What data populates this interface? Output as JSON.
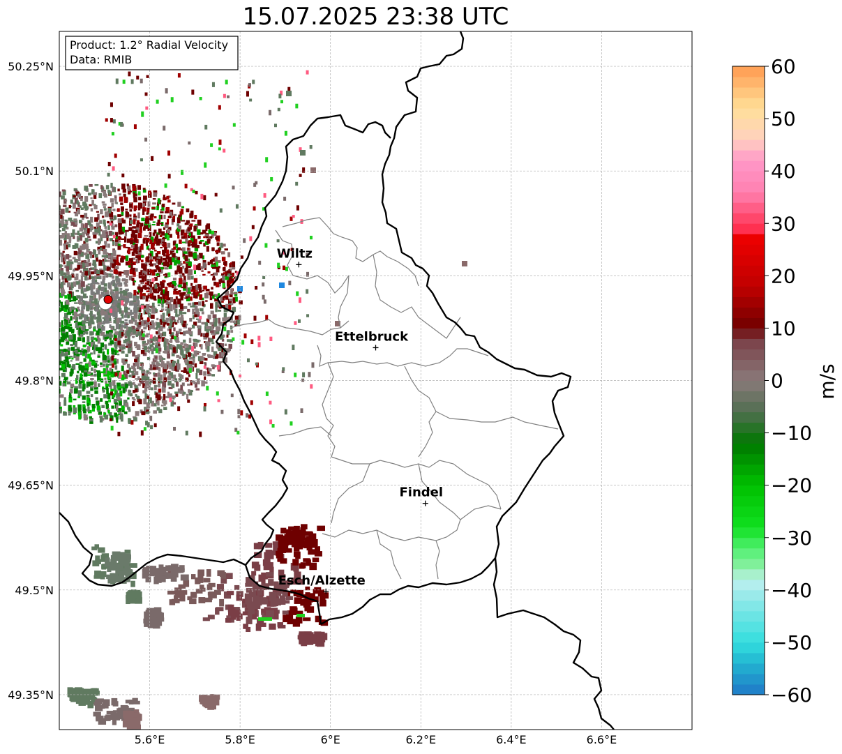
{
  "title": "15.07.2025 23:38 UTC",
  "info": {
    "line1": "Product: 1.2° Radial Velocity",
    "line2": "Data: RMIB"
  },
  "lat_ticks": [
    {
      "value": 50.25,
      "label": "50.25°N"
    },
    {
      "value": 50.1,
      "label": "50.1°N"
    },
    {
      "value": 49.95,
      "label": "49.95°N"
    },
    {
      "value": 49.8,
      "label": "49.8°N"
    },
    {
      "value": 49.65,
      "label": "49.65°N"
    },
    {
      "value": 49.5,
      "label": "49.5°N"
    },
    {
      "value": 49.35,
      "label": "49.35°N"
    }
  ],
  "lon_ticks": [
    {
      "value": 5.6,
      "label": "5.6°E"
    },
    {
      "value": 5.8,
      "label": "5.8°E"
    },
    {
      "value": 6.0,
      "label": "6°E"
    },
    {
      "value": 6.2,
      "label": "6.2°E"
    },
    {
      "value": 6.4,
      "label": "6.4°E"
    },
    {
      "value": 6.6,
      "label": "6.6°E"
    }
  ],
  "extent": {
    "lon_min": 5.4,
    "lon_max": 6.8,
    "lat_min": 49.3,
    "lat_max": 50.3
  },
  "cities": [
    {
      "name": "Wiltz",
      "lon": 5.93,
      "lat": 49.966
    },
    {
      "name": "Ettelbruck",
      "lon": 6.1,
      "lat": 49.847
    },
    {
      "name": "Findel",
      "lon": 6.21,
      "lat": 49.624
    },
    {
      "name": "Esch/Alzette",
      "lon": 5.99,
      "lat": 49.498
    }
  ],
  "radar_site": {
    "lon": 5.505,
    "lat": 49.914
  },
  "colorbar": {
    "label": "m/s",
    "min": -60,
    "max": 60,
    "ticks": [
      60,
      50,
      40,
      30,
      20,
      10,
      0,
      -10,
      -20,
      -30,
      -40,
      -50,
      -60
    ],
    "tick_labels": [
      "60",
      "50",
      "40",
      "30",
      "20",
      "10",
      "0",
      "−10",
      "−20",
      "−30",
      "−40",
      "−50",
      "−60"
    ],
    "stops": [
      {
        "v": -60,
        "c": "#1f78c8"
      },
      {
        "v": -54,
        "c": "#22b4d0"
      },
      {
        "v": -50,
        "c": "#33dede"
      },
      {
        "v": -42,
        "c": "#8de8e8"
      },
      {
        "v": -38,
        "c": "#c0f0f0"
      },
      {
        "v": -36,
        "c": "#90f0a8"
      },
      {
        "v": -32,
        "c": "#50f070"
      },
      {
        "v": -28,
        "c": "#10e020"
      },
      {
        "v": -20,
        "c": "#00c000"
      },
      {
        "v": -12,
        "c": "#007800"
      },
      {
        "v": -6,
        "c": "#506e50"
      },
      {
        "v": 0,
        "c": "#8a7a7a"
      },
      {
        "v": 8,
        "c": "#7a3e46"
      },
      {
        "v": 10,
        "c": "#700000"
      },
      {
        "v": 18,
        "c": "#c00000"
      },
      {
        "v": 28,
        "c": "#f00000"
      },
      {
        "v": 29,
        "c": "#ff3050"
      },
      {
        "v": 36,
        "c": "#ff80b0"
      },
      {
        "v": 42,
        "c": "#ff98c8"
      },
      {
        "v": 46,
        "c": "#ffd0c0"
      },
      {
        "v": 52,
        "c": "#ffe098"
      },
      {
        "v": 60,
        "c": "#ff9a50"
      }
    ]
  },
  "colors": {
    "positive_dark": "#6e0000",
    "near_zero_red": "#7a4a50",
    "near_zero_green": "#607a60",
    "negative_green": "#00a000",
    "radar_dot": "#e00000",
    "border": "#000000",
    "canton": "#808080"
  }
}
